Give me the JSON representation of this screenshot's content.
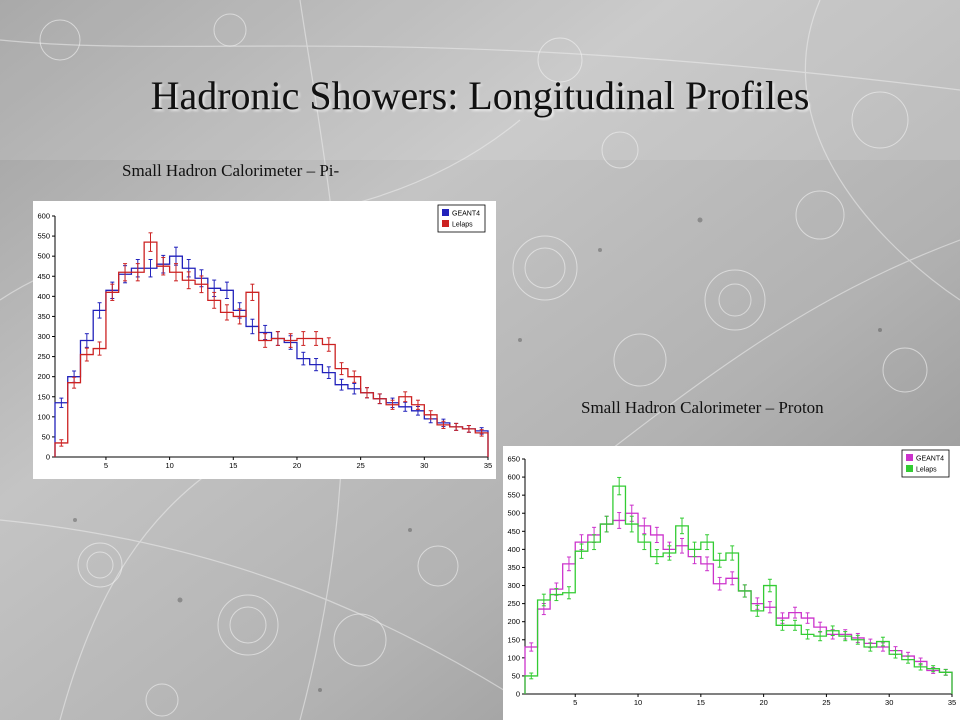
{
  "slide": {
    "title": "Hadronic Showers: Longitudinal Profiles",
    "caption_pi": "Small Hadron Calorimeter – Pi-",
    "caption_proton": "Small Hadron Calorimeter – Proton"
  },
  "chart_data": [
    {
      "type": "line",
      "style": "step histogram with error bars",
      "title": "Small Hadron Calorimeter – Pi-",
      "xlim": [
        1,
        35
      ],
      "ylim": [
        0,
        600
      ],
      "x_ticks": [
        5,
        10,
        15,
        20,
        25,
        30,
        35
      ],
      "y_ticks": [
        0,
        50,
        100,
        150,
        200,
        250,
        300,
        350,
        400,
        450,
        500,
        550,
        600
      ],
      "legend_position": "top-right",
      "x": [
        1,
        2,
        3,
        4,
        5,
        6,
        7,
        8,
        9,
        10,
        11,
        12,
        13,
        14,
        15,
        16,
        17,
        18,
        19,
        20,
        21,
        22,
        23,
        24,
        25,
        26,
        27,
        28,
        29,
        30,
        31,
        32,
        33,
        34
      ],
      "series": [
        {
          "name": "GEANT4",
          "color": "#2222bb",
          "values": [
            135,
            200,
            290,
            365,
            415,
            455,
            470,
            470,
            480,
            500,
            470,
            445,
            420,
            415,
            365,
            325,
            310,
            295,
            285,
            245,
            230,
            210,
            180,
            170,
            160,
            145,
            135,
            125,
            115,
            95,
            85,
            75,
            70,
            65
          ]
        },
        {
          "name": "Lelaps",
          "color": "#cc2222",
          "values": [
            35,
            185,
            255,
            270,
            410,
            460,
            460,
            535,
            475,
            460,
            440,
            430,
            390,
            360,
            350,
            410,
            290,
            295,
            290,
            295,
            295,
            280,
            220,
            200,
            160,
            145,
            130,
            150,
            130,
            105,
            80,
            75,
            70,
            60
          ]
        }
      ]
    },
    {
      "type": "line",
      "style": "step histogram with error bars",
      "title": "Small Hadron Calorimeter – Proton",
      "xlim": [
        1,
        35
      ],
      "ylim": [
        0,
        650
      ],
      "x_ticks": [
        5,
        10,
        15,
        20,
        25,
        30,
        35
      ],
      "y_ticks": [
        0,
        50,
        100,
        150,
        200,
        250,
        300,
        350,
        400,
        450,
        500,
        550,
        600,
        650
      ],
      "legend_position": "top-right",
      "x": [
        1,
        2,
        3,
        4,
        5,
        6,
        7,
        8,
        9,
        10,
        11,
        12,
        13,
        14,
        15,
        16,
        17,
        18,
        19,
        20,
        21,
        22,
        23,
        24,
        25,
        26,
        27,
        28,
        29,
        30,
        31,
        32,
        33,
        34
      ],
      "series": [
        {
          "name": "GEANT4",
          "color": "#cc33cc",
          "values": [
            130,
            235,
            290,
            360,
            420,
            440,
            470,
            480,
            500,
            465,
            440,
            400,
            410,
            380,
            360,
            305,
            320,
            285,
            250,
            240,
            210,
            225,
            210,
            185,
            165,
            165,
            155,
            140,
            130,
            120,
            105,
            90,
            65,
            60
          ]
        },
        {
          "name": "Lelaps",
          "color": "#33cc33",
          "values": [
            50,
            260,
            275,
            280,
            395,
            420,
            470,
            575,
            470,
            420,
            380,
            390,
            465,
            400,
            420,
            370,
            390,
            285,
            230,
            300,
            190,
            190,
            165,
            160,
            175,
            160,
            150,
            130,
            145,
            110,
            95,
            75,
            70,
            60
          ]
        }
      ]
    }
  ]
}
